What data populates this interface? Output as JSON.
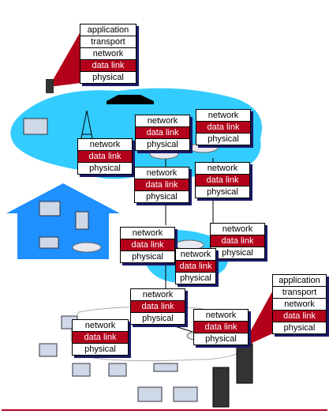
{
  "stacks": [
    {
      "id": "host-top",
      "layers": [
        "application",
        "transport",
        "network",
        "data link",
        "physical"
      ],
      "highlight": "data link"
    },
    {
      "id": "router-1",
      "layers": [
        "network",
        "data link",
        "physical"
      ],
      "highlight": "data link"
    },
    {
      "id": "router-2",
      "layers": [
        "network",
        "data link",
        "physical"
      ],
      "highlight": "data link"
    },
    {
      "id": "router-3",
      "layers": [
        "network",
        "data link",
        "physical"
      ],
      "highlight": "data link"
    },
    {
      "id": "router-4",
      "layers": [
        "network",
        "data link",
        "physical"
      ],
      "highlight": "data link"
    },
    {
      "id": "router-5",
      "layers": [
        "network",
        "data link",
        "physical"
      ],
      "highlight": "data link"
    },
    {
      "id": "router-6",
      "layers": [
        "network",
        "data link",
        "physical"
      ],
      "highlight": "data link"
    },
    {
      "id": "router-7",
      "layers": [
        "network",
        "data link",
        "physical"
      ],
      "highlight": "data link"
    },
    {
      "id": "router-8",
      "layers": [
        "network",
        "data link",
        "physical"
      ],
      "highlight": "data link"
    },
    {
      "id": "router-9",
      "layers": [
        "network",
        "data link",
        "physical"
      ],
      "highlight": "data link"
    },
    {
      "id": "router-10",
      "layers": [
        "network",
        "data link",
        "physical"
      ],
      "highlight": "data link"
    },
    {
      "id": "router-11",
      "layers": [
        "network",
        "data link",
        "physical"
      ],
      "highlight": "data link"
    },
    {
      "id": "host-bottom",
      "layers": [
        "application",
        "transport",
        "network",
        "data link",
        "physical"
      ],
      "highlight": "data link"
    }
  ],
  "colors": {
    "cloud": "#33ccff",
    "highlight": "#b3001b",
    "house": "#1e90ff",
    "shadow": "#1a1a66"
  }
}
